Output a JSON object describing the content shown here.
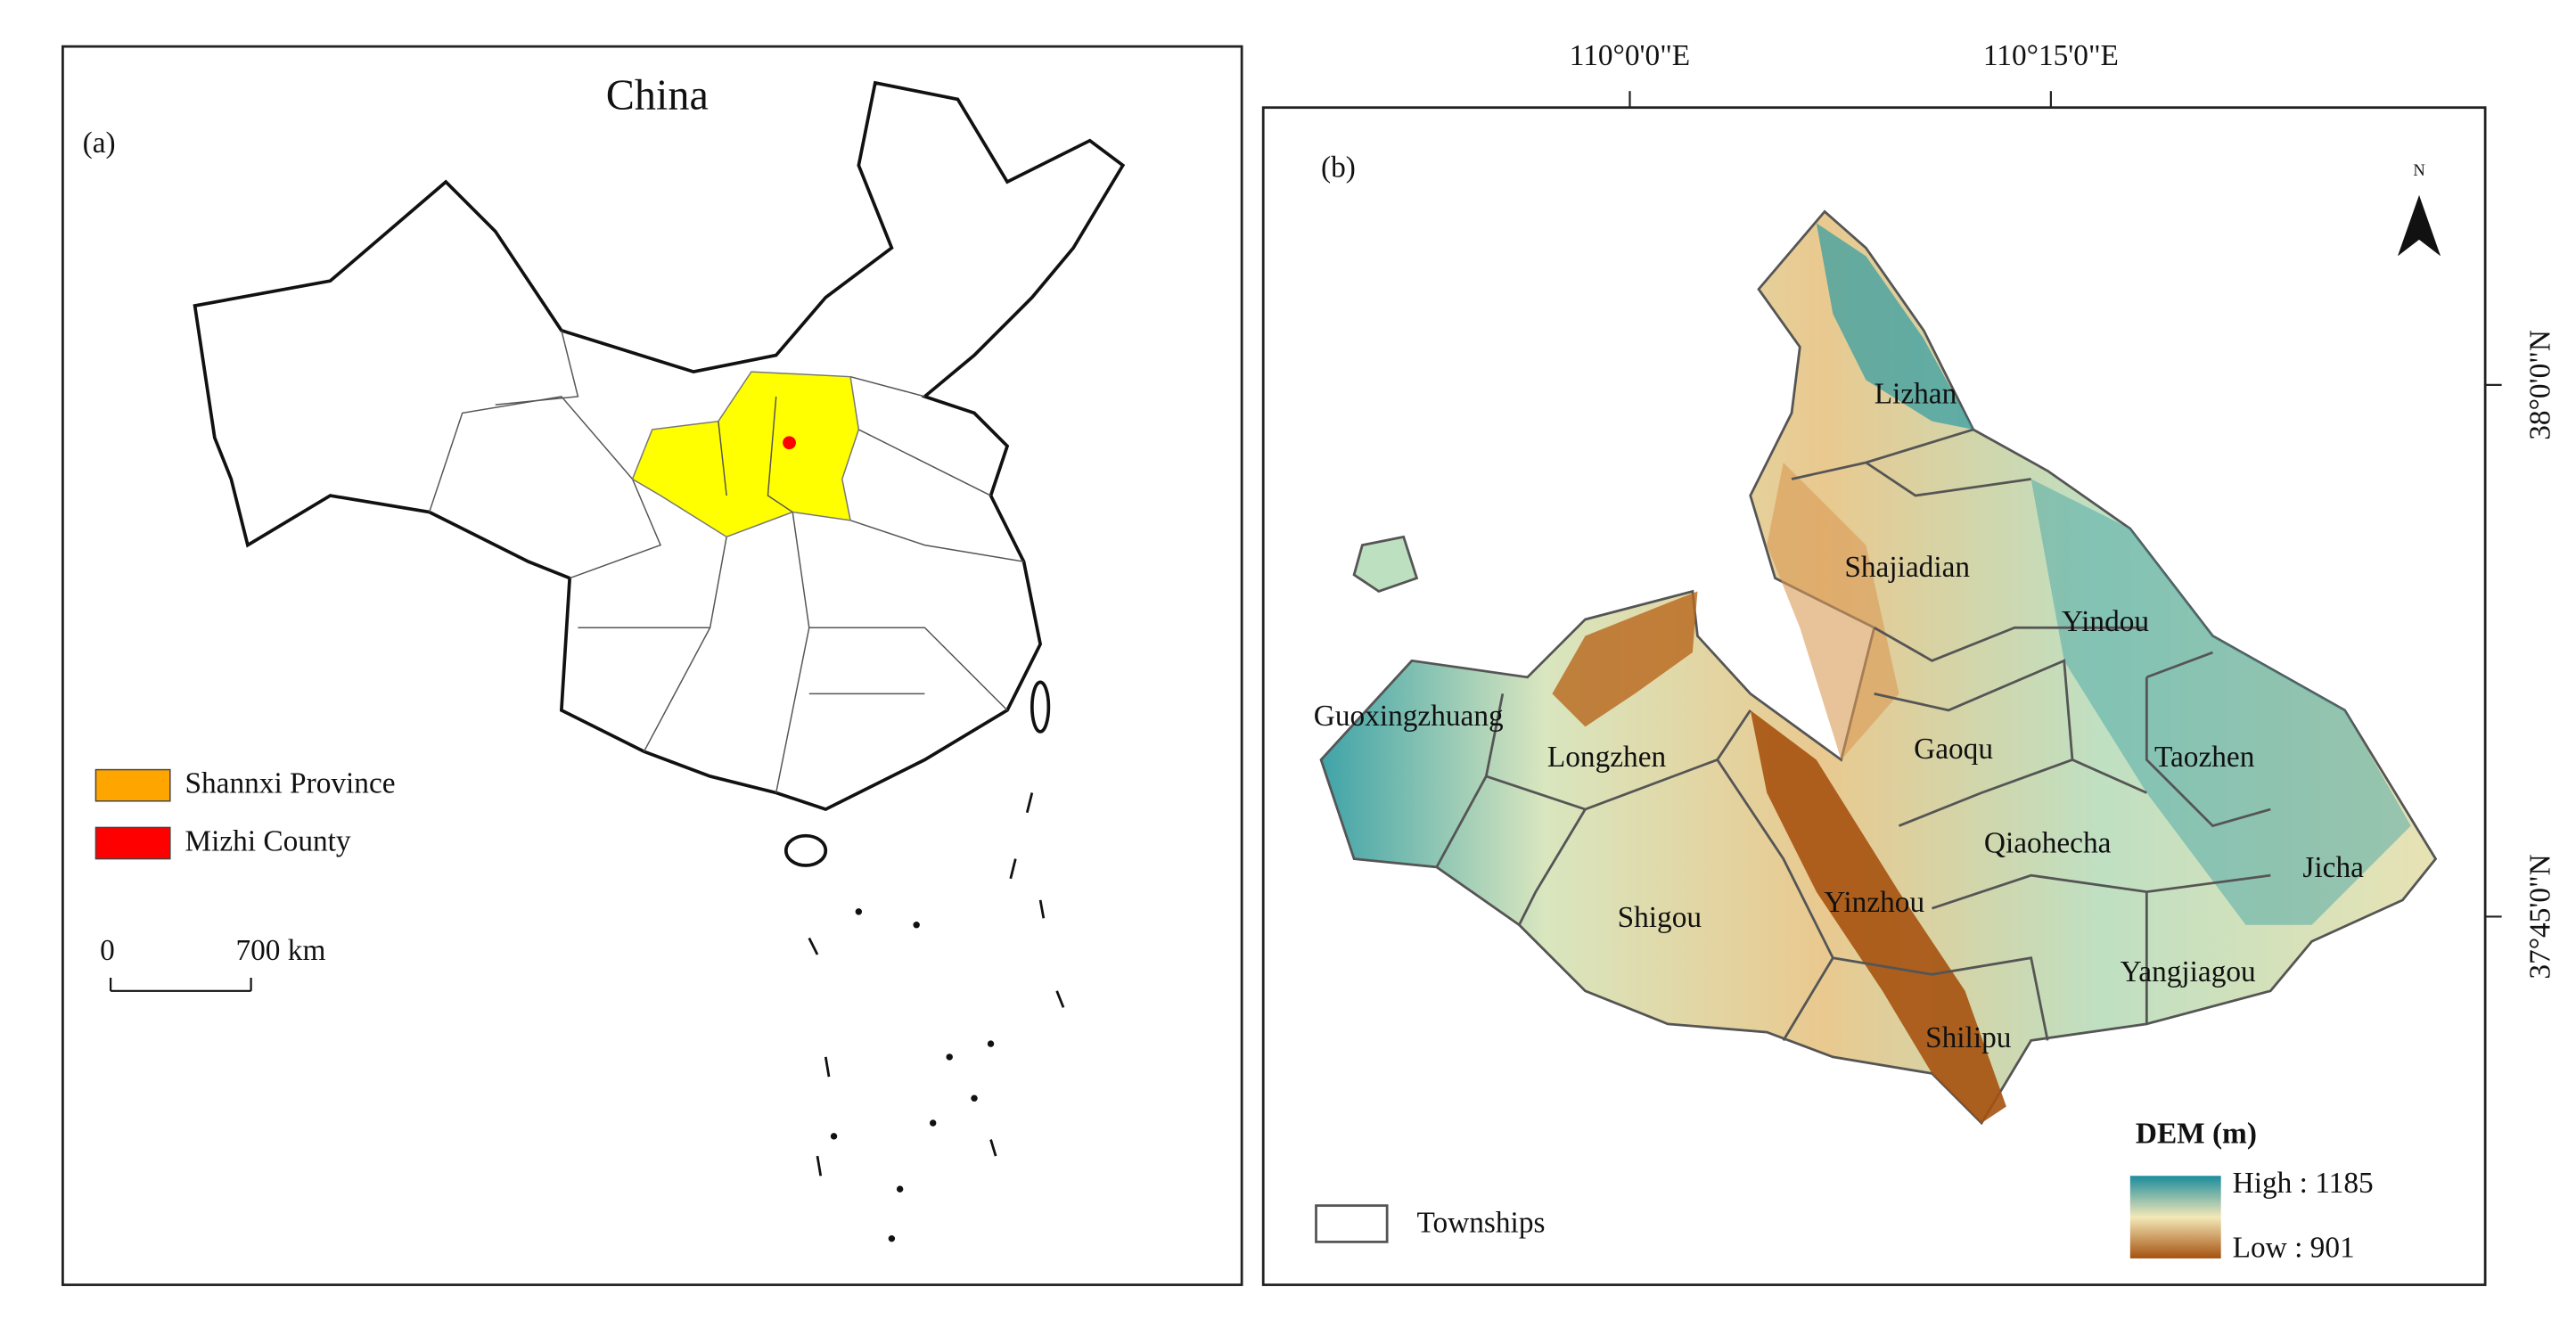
{
  "panel_a": {
    "label": "(a)",
    "title": "China",
    "legend": [
      {
        "label": "Shannxi Province",
        "color": "#ffa500"
      },
      {
        "label": "Mizhi County",
        "color": "#ff0000"
      }
    ],
    "scale_bar": {
      "start": "0",
      "end": "700 km"
    }
  },
  "panel_b": {
    "label": "(b)",
    "north": "N",
    "longitude_labels": [
      "110°0'0\"E",
      "110°15'0\"E"
    ],
    "latitude_labels": [
      "38°0'0\"N",
      "37°45'0\"N"
    ],
    "townships": [
      "Lizhan",
      "Shajiadian",
      "Yindou",
      "Guoxingzhuang",
      "Longzhen",
      "Gaoqu",
      "Taozhen",
      "Qiaohecha",
      "Jicha",
      "Shigou",
      "Yinzhou",
      "Yangjiagou",
      "Shilipu"
    ],
    "legend": {
      "townships": "Townships",
      "dem_title": "DEM (m)",
      "high": "High : 1185",
      "low": "Low : 901",
      "high_color": "#1a8c9c",
      "low_color": "#a6520f"
    }
  }
}
